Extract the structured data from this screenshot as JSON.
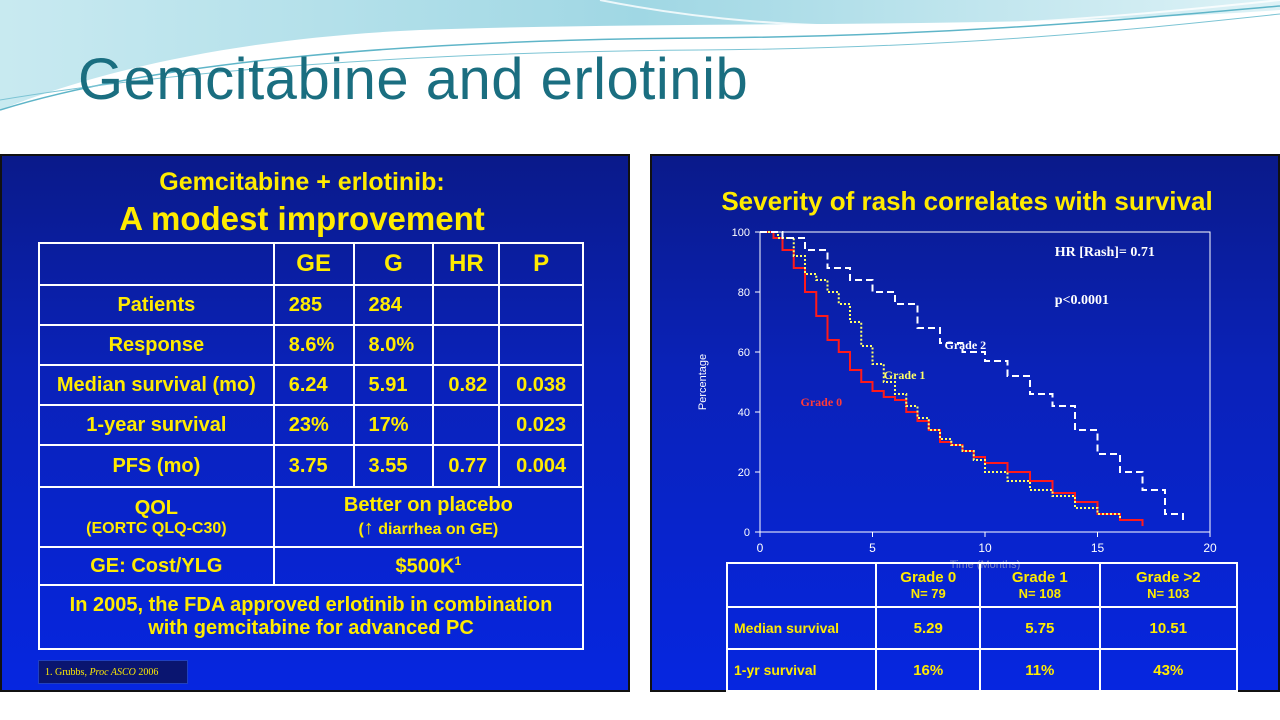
{
  "slide": {
    "title": "Gemcitabine and erlotinib"
  },
  "left_panel": {
    "title_line1": "Gemcitabine + erlotinib:",
    "title_line2": "A modest improvement",
    "table": {
      "headers": [
        "",
        "GE",
        "G",
        "HR",
        "P"
      ],
      "rows": [
        {
          "label": "Patients",
          "ge": "285",
          "g": "284",
          "hr": "",
          "p": ""
        },
        {
          "label": "Response",
          "ge": "8.6%",
          "g": "8.0%",
          "hr": "",
          "p": ""
        },
        {
          "label": "Median survival (mo)",
          "ge": "6.24",
          "g": "5.91",
          "hr": "0.82",
          "p": "0.038"
        },
        {
          "label": "1-year survival",
          "ge": "23%",
          "g": "17%",
          "hr": "",
          "p": "0.023"
        },
        {
          "label": "PFS (mo)",
          "ge": "3.75",
          "g": "3.55",
          "hr": "0.77",
          "p": "0.004"
        }
      ],
      "qol_label": "QOL",
      "qol_sub": "(EORTC QLQ-C30)",
      "qol_value": "Better on placebo",
      "qol_value_sub_open": "(",
      "qol_value_sub_arrow": "↑",
      "qol_value_sub_rest": " diarrhea on GE)",
      "cost_label": "GE: Cost/YLG",
      "cost_value": "$500K",
      "cost_sup": "1",
      "fda_line1": "In 2005, the FDA approved erlotinib in combination",
      "fda_line2": "with gemcitabine for advanced PC"
    },
    "footnote_pre": "1. Grubbs, ",
    "footnote_italic": "Proc ASCO",
    "footnote_post": " 2006"
  },
  "right_panel": {
    "title": "Severity of rash correlates with survival",
    "chart_data": {
      "type": "line",
      "title": "",
      "xlabel": "Time (Months)",
      "ylabel": "Percentage",
      "xlim": [
        0,
        20
      ],
      "ylim": [
        0,
        100
      ],
      "xticks": [
        0,
        5,
        10,
        15,
        20
      ],
      "yticks": [
        0,
        20,
        40,
        60,
        80,
        100
      ],
      "annotations": [
        "HR [Rash]= 0.71",
        "p<0.0001"
      ],
      "series": [
        {
          "name": "Grade 0",
          "color": "#ff1a1a",
          "style": "solid",
          "x": [
            0,
            0.6,
            1.0,
            1.5,
            2.0,
            2.5,
            3.0,
            3.5,
            4.0,
            4.5,
            5.0,
            5.5,
            6.0,
            6.5,
            7.0,
            7.5,
            8.0,
            8.5,
            9.0,
            9.5,
            10.0,
            11.0,
            12.0,
            13.0,
            14.0,
            15.0,
            16.0,
            17.0
          ],
          "y": [
            100,
            98,
            94,
            88,
            80,
            72,
            64,
            60,
            54,
            50,
            47,
            45,
            44,
            40,
            37,
            34,
            30,
            29,
            27,
            25,
            23,
            20,
            17,
            13,
            10,
            6,
            4,
            2
          ]
        },
        {
          "name": "Grade 1",
          "color": "#ffff66",
          "style": "dotted",
          "x": [
            0,
            0.8,
            1.5,
            2.0,
            2.5,
            3.0,
            3.5,
            4.0,
            4.5,
            5.0,
            5.5,
            6.0,
            6.5,
            7.0,
            7.5,
            8.0,
            8.5,
            9.0,
            9.5,
            10.0,
            11.0,
            12.0,
            13.0,
            14.0,
            15.0,
            16.0
          ],
          "y": [
            100,
            98,
            92,
            86,
            84,
            80,
            76,
            70,
            62,
            56,
            50,
            46,
            42,
            38,
            34,
            31,
            29,
            27,
            24,
            20,
            17,
            14,
            12,
            8,
            6,
            4
          ]
        },
        {
          "name": "Grade 2",
          "color": "#ffffff",
          "style": "dashed",
          "x": [
            0,
            1.0,
            2.0,
            3.0,
            4.0,
            5.0,
            6.0,
            7.0,
            8.0,
            9.0,
            10.0,
            11.0,
            12.0,
            13.0,
            14.0,
            15.0,
            16.0,
            17.0,
            18.0,
            18.8
          ],
          "y": [
            100,
            98,
            94,
            88,
            84,
            80,
            76,
            68,
            63,
            60,
            57,
            52,
            46,
            42,
            34,
            26,
            20,
            14,
            6,
            3
          ]
        }
      ]
    },
    "table": {
      "headers": [
        {
          "label": "Grade 0",
          "n": "N= 79"
        },
        {
          "label": "Grade 1",
          "n": "N= 108"
        },
        {
          "label": "Grade >2",
          "n": "N= 103"
        }
      ],
      "rows": [
        {
          "label": "Median survival",
          "values": [
            "5.29",
            "5.75",
            "10.51"
          ]
        },
        {
          "label": "1-yr survival",
          "values": [
            "16%",
            "11%",
            "43%"
          ]
        }
      ]
    }
  }
}
